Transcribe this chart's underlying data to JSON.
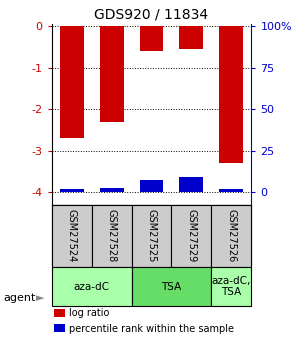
{
  "title": "GDS920 / 11834",
  "samples": [
    "GSM27524",
    "GSM27528",
    "GSM27525",
    "GSM27529",
    "GSM27526"
  ],
  "log_ratios": [
    -2.7,
    -2.3,
    -0.6,
    -0.55,
    -3.3
  ],
  "percentile_ranks": [
    2.0,
    2.5,
    7.5,
    9.0,
    2.0
  ],
  "ylim_left": [
    -4.3,
    0.05
  ],
  "left_ticks": [
    0,
    -1,
    -2,
    -3,
    -4
  ],
  "right_tick_positions": [
    -4.0,
    -3.0,
    -2.0,
    -1.0,
    0.0
  ],
  "right_tick_labels": [
    "0",
    "25",
    "50",
    "75",
    "100%"
  ],
  "bar_color_red": "#cc0000",
  "bar_color_blue": "#0000cc",
  "agent_groups": [
    {
      "label": "aza-dC",
      "start": 0,
      "end": 2,
      "color": "#aaffaa"
    },
    {
      "label": "TSA",
      "start": 2,
      "end": 4,
      "color": "#66dd66"
    },
    {
      "label": "aza-dC,\nTSA",
      "start": 4,
      "end": 5,
      "color": "#aaffaa"
    }
  ],
  "legend_items": [
    {
      "color": "#cc0000",
      "label": "log ratio"
    },
    {
      "color": "#0000cc",
      "label": "percentile rank within the sample"
    }
  ],
  "sample_box_color": "#cccccc",
  "bar_width": 0.6,
  "figure_bg": "#ffffff"
}
